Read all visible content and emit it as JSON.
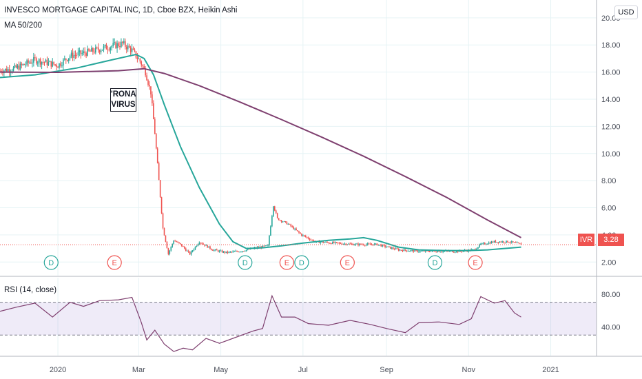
{
  "legend": {
    "title": "INVESCO MORTGAGE CAPITAL INC, 1D, Cboe BZX, Heikin Ashi",
    "ma": "MA 50/200"
  },
  "rsi_label": "RSI (14, close)",
  "annotation": [
    "'RONA",
    "VIRUS"
  ],
  "currency": "USD",
  "ticker": "IVR",
  "last_price": "3.28",
  "colors": {
    "up": "#26a69a",
    "down": "#ef5350",
    "ma50": "#26a69a",
    "ma200": "#7e3f6f",
    "rsi_line": "#7e3f6f",
    "rsi_band": "#7e57c2",
    "grid": "#e6f3f5",
    "axis_text": "#4a4f5a",
    "price_line": "#ef5350"
  },
  "chart_data": [
    {
      "type": "candlestick",
      "title": "INVESCO MORTGAGE CAPITAL INC, 1D, Cboe BZX, Heikin Ashi",
      "xlabel": "",
      "ylabel": "",
      "x_ticks": [
        "2020",
        "Mar",
        "May",
        "Jul",
        "Sep",
        "Nov",
        "2021"
      ],
      "x_tick_dates": [
        "2020-01-01",
        "2020-03-01",
        "2020-05-01",
        "2020-07-01",
        "2020-09-01",
        "2020-11-01",
        "2021-01-01"
      ],
      "x_range": [
        "2019-11-19",
        "2021-02-04"
      ],
      "y_ticks": [
        "2.00",
        "4.00",
        "6.00",
        "8.00",
        "10.00",
        "12.00",
        "14.00",
        "16.00",
        "18.00",
        "20.00"
      ],
      "ylim": [
        1.0,
        20.5
      ],
      "grid": true,
      "price_series": [
        [
          "2019-11-19",
          16.1
        ],
        [
          "2019-12-01",
          16.3
        ],
        [
          "2019-12-15",
          16.9
        ],
        [
          "2020-01-01",
          16.5
        ],
        [
          "2020-01-10",
          17.2
        ],
        [
          "2020-01-25",
          17.5
        ],
        [
          "2020-02-05",
          17.8
        ],
        [
          "2020-02-18",
          18.1
        ],
        [
          "2020-02-25",
          17.6
        ],
        [
          "2020-03-02",
          16.8
        ],
        [
          "2020-03-06",
          16.0
        ],
        [
          "2020-03-10",
          14.5
        ],
        [
          "2020-03-13",
          11.5
        ],
        [
          "2020-03-16",
          8.0
        ],
        [
          "2020-03-19",
          4.5
        ],
        [
          "2020-03-23",
          2.6
        ],
        [
          "2020-03-27",
          3.6
        ],
        [
          "2020-04-01",
          3.3
        ],
        [
          "2020-04-08",
          2.6
        ],
        [
          "2020-04-15",
          3.5
        ],
        [
          "2020-04-25",
          2.9
        ],
        [
          "2020-05-05",
          2.7
        ],
        [
          "2020-05-15",
          2.8
        ],
        [
          "2020-05-25",
          3.0
        ],
        [
          "2020-06-05",
          3.2
        ],
        [
          "2020-06-09",
          6.2
        ],
        [
          "2020-06-12",
          5.2
        ],
        [
          "2020-06-20",
          4.8
        ],
        [
          "2020-06-30",
          4.0
        ],
        [
          "2020-07-10",
          3.5
        ],
        [
          "2020-07-25",
          3.4
        ],
        [
          "2020-08-10",
          3.3
        ],
        [
          "2020-08-25",
          3.3
        ],
        [
          "2020-09-10",
          2.9
        ],
        [
          "2020-09-25",
          2.8
        ],
        [
          "2020-10-10",
          2.8
        ],
        [
          "2020-10-25",
          2.8
        ],
        [
          "2020-11-05",
          2.9
        ],
        [
          "2020-11-10",
          3.3
        ],
        [
          "2020-11-20",
          3.5
        ],
        [
          "2020-12-01",
          3.5
        ],
        [
          "2020-12-10",
          3.3
        ]
      ],
      "series": [
        {
          "name": "MA 50",
          "points": [
            [
              "2019-11-19",
              15.6
            ],
            [
              "2019-12-15",
              15.8
            ],
            [
              "2020-01-15",
              16.3
            ],
            [
              "2020-02-10",
              16.9
            ],
            [
              "2020-02-28",
              17.3
            ],
            [
              "2020-03-05",
              17.0
            ],
            [
              "2020-03-12",
              15.8
            ],
            [
              "2020-03-20",
              13.6
            ],
            [
              "2020-04-01",
              10.5
            ],
            [
              "2020-04-15",
              7.5
            ],
            [
              "2020-04-30",
              4.8
            ],
            [
              "2020-05-10",
              3.5
            ],
            [
              "2020-05-20",
              3.0
            ],
            [
              "2020-06-01",
              3.05
            ],
            [
              "2020-06-15",
              3.2
            ],
            [
              "2020-07-01",
              3.4
            ],
            [
              "2020-07-20",
              3.6
            ],
            [
              "2020-08-05",
              3.7
            ],
            [
              "2020-08-15",
              3.8
            ],
            [
              "2020-08-25",
              3.6
            ],
            [
              "2020-09-10",
              3.1
            ],
            [
              "2020-09-25",
              2.9
            ],
            [
              "2020-10-15",
              2.85
            ],
            [
              "2020-11-01",
              2.85
            ],
            [
              "2020-11-15",
              2.9
            ],
            [
              "2020-12-10",
              3.1
            ]
          ]
        },
        {
          "name": "MA 200",
          "points": [
            [
              "2019-11-19",
              16.0
            ],
            [
              "2020-01-01",
              15.98
            ],
            [
              "2020-02-15",
              16.1
            ],
            [
              "2020-03-05",
              16.25
            ],
            [
              "2020-03-20",
              15.9
            ],
            [
              "2020-04-15",
              15.0
            ],
            [
              "2020-05-15",
              13.8
            ],
            [
              "2020-06-15",
              12.5
            ],
            [
              "2020-07-15",
              11.2
            ],
            [
              "2020-08-15",
              9.8
            ],
            [
              "2020-09-15",
              8.3
            ],
            [
              "2020-10-15",
              6.8
            ],
            [
              "2020-11-15",
              5.1
            ],
            [
              "2020-12-10",
              3.8
            ]
          ]
        }
      ],
      "markers": [
        {
          "label": "D",
          "type": "dividend",
          "date": "2019-12-27"
        },
        {
          "label": "E",
          "type": "earnings",
          "date": "2020-02-12"
        },
        {
          "label": "D",
          "type": "dividend",
          "date": "2020-05-19"
        },
        {
          "label": "E",
          "type": "earnings",
          "date": "2020-06-19"
        },
        {
          "label": "D",
          "type": "dividend",
          "date": "2020-06-30"
        },
        {
          "label": "E",
          "type": "earnings",
          "date": "2020-08-03"
        },
        {
          "label": "D",
          "type": "dividend",
          "date": "2020-10-07"
        },
        {
          "label": "E",
          "type": "earnings",
          "date": "2020-11-06"
        }
      ],
      "last_price": 3.28
    },
    {
      "type": "line",
      "title": "RSI (14, close)",
      "xlabel": "",
      "ylabel": "",
      "y_ticks": [
        "40.00",
        "80.00"
      ],
      "ylim": [
        5,
        100
      ],
      "band": [
        30,
        70
      ],
      "grid": true,
      "series": [
        {
          "name": "RSI (14, close)",
          "points": [
            [
              "2019-11-19",
              59
            ],
            [
              "2019-12-01",
              64
            ],
            [
              "2019-12-15",
              69
            ],
            [
              "2019-12-28",
              52
            ],
            [
              "2020-01-10",
              70
            ],
            [
              "2020-01-20",
              65
            ],
            [
              "2020-02-01",
              72
            ],
            [
              "2020-02-15",
              73
            ],
            [
              "2020-02-25",
              76
            ],
            [
              "2020-03-03",
              45
            ],
            [
              "2020-03-07",
              24
            ],
            [
              "2020-03-13",
              36
            ],
            [
              "2020-03-20",
              19
            ],
            [
              "2020-03-27",
              10
            ],
            [
              "2020-04-03",
              14
            ],
            [
              "2020-04-10",
              12
            ],
            [
              "2020-04-20",
              26
            ],
            [
              "2020-04-30",
              20
            ],
            [
              "2020-05-10",
              26
            ],
            [
              "2020-05-25",
              35
            ],
            [
              "2020-06-01",
              38
            ],
            [
              "2020-06-08",
              78
            ],
            [
              "2020-06-15",
              52
            ],
            [
              "2020-06-25",
              52
            ],
            [
              "2020-07-05",
              44
            ],
            [
              "2020-07-20",
              42
            ],
            [
              "2020-08-05",
              48
            ],
            [
              "2020-08-20",
              43
            ],
            [
              "2020-09-01",
              38
            ],
            [
              "2020-09-15",
              33
            ],
            [
              "2020-09-25",
              45
            ],
            [
              "2020-10-10",
              46
            ],
            [
              "2020-10-25",
              43
            ],
            [
              "2020-11-03",
              50
            ],
            [
              "2020-11-10",
              77
            ],
            [
              "2020-11-20",
              69
            ],
            [
              "2020-11-28",
              72
            ],
            [
              "2020-12-05",
              57
            ],
            [
              "2020-12-10",
              52
            ]
          ]
        }
      ]
    }
  ]
}
